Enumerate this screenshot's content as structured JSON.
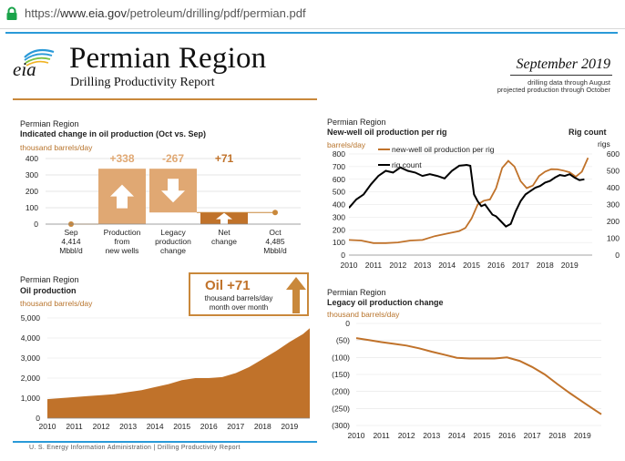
{
  "browser": {
    "url_prefix": "https://",
    "url_domain": "www.eia.gov",
    "url_path": "/petroleum/drilling/pdf/permian.pdf"
  },
  "header": {
    "logo_text": "eia",
    "title": "Permian Region",
    "subtitle": "Drilling Productivity Report",
    "date": "September 2019",
    "note_1": "drilling data through August",
    "note_2": "projected production through October"
  },
  "colors": {
    "accent": "#c9883b",
    "rule_blue": "#2a9ad8",
    "bar_light": "#e0a873",
    "bar_dark": "#c0722a"
  },
  "footer": "U. S. Energy Information Administration  |  Drilling Productivity Report",
  "panels": {
    "change": {
      "region": "Permian Region",
      "title": "Indicated change in oil production (Oct vs. Sep)",
      "unit": "thousand barrels/day"
    },
    "rig": {
      "region": "Permian Region",
      "title": "New-well oil production per rig",
      "unit": "barrels/day",
      "right_title": "Rig count",
      "right_unit": "rigs"
    },
    "oil": {
      "region": "Permian Region",
      "title": "Oil production",
      "unit": "thousand barrels/day",
      "box_value": "Oil +71",
      "box_text": "thousand barrels/day month over month"
    },
    "legacy": {
      "region": "Permian Region",
      "title": "Legacy oil production change",
      "unit": "thousand barrels/day"
    }
  },
  "chart_data": [
    {
      "type": "bar",
      "title": "Indicated change in oil production (Oct vs. Sep)",
      "ylabel": "thousand barrels/day",
      "ylim": [
        0,
        400
      ],
      "yticks": [
        "0",
        "100",
        "200",
        "300",
        "400"
      ],
      "categories": [
        "Sep\n4,414\nMbbl/d",
        "Production\nfrom\nnew wells",
        "Legacy\nproduction\nchange",
        "Net\nchange",
        "Oct\n4,485\nMbbl/d"
      ],
      "category_lines": [
        [
          "Sep",
          "4,414",
          "Mbbl/d"
        ],
        [
          "Production",
          "from",
          "new wells"
        ],
        [
          "Legacy",
          "production",
          "change"
        ],
        [
          "Net",
          "change"
        ],
        [
          "Oct",
          "4,485",
          "Mbbl/d"
        ]
      ],
      "waterfall": [
        {
          "kind": "level",
          "value": 0
        },
        {
          "kind": "up",
          "from": 0,
          "to": 338,
          "label": "+338"
        },
        {
          "kind": "down",
          "from": 338,
          "to": 71,
          "label": "-267"
        },
        {
          "kind": "net",
          "from": 0,
          "to": 71,
          "label": "+71"
        },
        {
          "kind": "level",
          "value": 71
        }
      ]
    },
    {
      "type": "line",
      "title": "New-well oil production per rig",
      "ylabel": "barrels/day",
      "y2label": "rigs",
      "ylim": [
        0,
        800
      ],
      "y2lim": [
        0,
        600
      ],
      "yticks": [
        "0",
        "100",
        "200",
        "300",
        "400",
        "500",
        "600",
        "700",
        "800"
      ],
      "y2ticks": [
        "0",
        "100",
        "200",
        "300",
        "400",
        "500",
        "600"
      ],
      "xticks": [
        "2010",
        "2011",
        "2012",
        "2013",
        "2014",
        "2015",
        "2016",
        "2017",
        "2018",
        "2019"
      ],
      "legend": "top-left",
      "series": [
        {
          "name": "new-well oil production per rig",
          "axis": "left",
          "x": [
            2007.0,
            2007.5,
            2008.0,
            2008.5,
            2009.0,
            2009.5,
            2010.0,
            2010.5,
            2011.0,
            2011.5,
            2012.0,
            2012.5,
            2013.0,
            2013.5,
            2014.0,
            2014.5,
            2014.75,
            2015.0,
            2015.25,
            2015.5,
            2015.75,
            2016.0,
            2016.25,
            2016.5,
            2016.75,
            2017.0,
            2017.25,
            2017.5,
            2017.75,
            2018.0,
            2018.25,
            2018.5,
            2018.75,
            2019.0,
            2019.25,
            2019.5,
            2019.75
          ],
          "y": [
            120,
            125,
            120,
            118,
            110,
            112,
            120,
            115,
            95,
            95,
            100,
            115,
            120,
            150,
            170,
            190,
            215,
            290,
            400,
            430,
            440,
            530,
            690,
            745,
            700,
            585,
            530,
            550,
            625,
            660,
            680,
            678,
            668,
            655,
            620,
            660,
            770
          ]
        },
        {
          "name": "rig count",
          "axis": "right",
          "x": [
            2010.0,
            2010.3,
            2010.6,
            2010.9,
            2011.2,
            2011.5,
            2011.8,
            2012.1,
            2012.4,
            2012.7,
            2013.0,
            2013.3,
            2013.6,
            2013.9,
            2014.2,
            2014.5,
            2014.8,
            2014.95,
            2015.1,
            2015.25,
            2015.4,
            2015.55,
            2015.7,
            2015.85,
            2016.0,
            2016.2,
            2016.4,
            2016.6,
            2016.8,
            2017.0,
            2017.2,
            2017.4,
            2017.6,
            2017.8,
            2018.0,
            2018.2,
            2018.4,
            2018.6,
            2018.8,
            2019.0,
            2019.2,
            2019.4,
            2019.6
          ],
          "y": [
            280,
            330,
            360,
            420,
            470,
            500,
            490,
            520,
            500,
            490,
            470,
            480,
            470,
            455,
            500,
            530,
            535,
            530,
            360,
            320,
            290,
            300,
            270,
            240,
            230,
            200,
            170,
            185,
            260,
            320,
            360,
            380,
            400,
            410,
            430,
            440,
            460,
            475,
            470,
            480,
            460,
            445,
            450
          ]
        }
      ]
    },
    {
      "type": "area",
      "title": "Oil production",
      "ylabel": "thousand barrels/day",
      "ylim": [
        0,
        5000
      ],
      "yticks": [
        "0",
        "1,000",
        "2,000",
        "3,000",
        "4,000",
        "5,000"
      ],
      "xticks": [
        "2010",
        "2011",
        "2012",
        "2013",
        "2014",
        "2015",
        "2016",
        "2017",
        "2018",
        "2019"
      ],
      "x": [
        2007.0,
        2008.0,
        2009.0,
        2010.0,
        2010.5,
        2011.0,
        2011.5,
        2012.0,
        2012.5,
        2013.0,
        2013.5,
        2014.0,
        2014.5,
        2015.0,
        2015.5,
        2016.0,
        2016.5,
        2017.0,
        2017.5,
        2018.0,
        2018.5,
        2019.0,
        2019.5,
        2019.75
      ],
      "y": [
        880,
        920,
        900,
        950,
        1000,
        1050,
        1100,
        1150,
        1200,
        1300,
        1400,
        1550,
        1700,
        1900,
        2000,
        2000,
        2050,
        2250,
        2550,
        2950,
        3350,
        3800,
        4200,
        4485
      ]
    },
    {
      "type": "line",
      "title": "Legacy oil production change",
      "ylabel": "thousand barrels/day",
      "ylim": [
        -300,
        0
      ],
      "yticks": [
        "0",
        "(50)",
        "(100)",
        "(150)",
        "(200)",
        "(250)",
        "(300)"
      ],
      "xticks": [
        "2010",
        "2011",
        "2012",
        "2013",
        "2014",
        "2015",
        "2016",
        "2017",
        "2018",
        "2019"
      ],
      "series": [
        {
          "name": "legacy change",
          "x": [
            2007.0,
            2007.5,
            2008.0,
            2008.5,
            2009.0,
            2009.5,
            2010.0,
            2010.5,
            2011.0,
            2011.5,
            2012.0,
            2012.5,
            2013.0,
            2013.5,
            2014.0,
            2014.5,
            2015.0,
            2015.5,
            2016.0,
            2016.5,
            2017.0,
            2017.5,
            2018.0,
            2018.5,
            2019.0,
            2019.5,
            2019.75
          ],
          "y": [
            -20,
            -23,
            -26,
            -29,
            -33,
            -38,
            -43,
            -49,
            -55,
            -60,
            -65,
            -73,
            -83,
            -92,
            -101,
            -103,
            -103,
            -103,
            -100,
            -110,
            -128,
            -150,
            -178,
            -205,
            -230,
            -255,
            -267
          ]
        }
      ]
    }
  ]
}
